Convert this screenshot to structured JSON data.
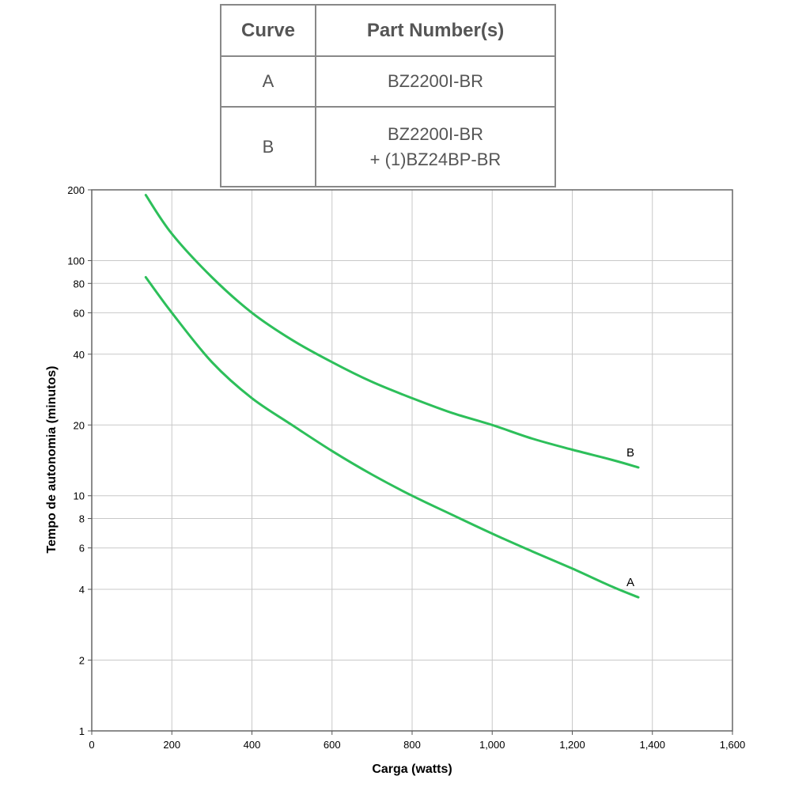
{
  "legend_table": {
    "headers": [
      "Curve",
      "Part Number(s)"
    ],
    "rows": [
      {
        "curve": "A",
        "parts": [
          "BZ2200I-BR"
        ]
      },
      {
        "curve": "B",
        "parts": [
          "BZ2200I-BR",
          "+ (1)BZ24BP-BR"
        ]
      }
    ]
  },
  "chart_data": {
    "type": "line",
    "xlabel": "Carga (watts)",
    "ylabel": "Tempo de autonomia (minutos)",
    "xlim": [
      0,
      1600
    ],
    "ylim": [
      1,
      200
    ],
    "yscale": "log",
    "grid": true,
    "x_ticks": [
      "0",
      "200",
      "400",
      "600",
      "800",
      "1,000",
      "1,200",
      "1,400",
      "1,600"
    ],
    "y_ticks": [
      "1",
      "2",
      "4",
      "6",
      "8",
      "10",
      "20",
      "40",
      "60",
      "80",
      "100",
      "200"
    ],
    "line_color": "#2dbf5a",
    "series": [
      {
        "name": "A",
        "x": [
          135,
          200,
          300,
          400,
          500,
          600,
          700,
          800,
          900,
          1000,
          1100,
          1200,
          1300,
          1365
        ],
        "y": [
          85,
          60,
          37,
          26,
          20,
          15.5,
          12.3,
          10,
          8.3,
          6.9,
          5.8,
          4.9,
          4.1,
          3.7
        ]
      },
      {
        "name": "B",
        "x": [
          135,
          200,
          300,
          400,
          500,
          600,
          700,
          800,
          900,
          1000,
          1100,
          1200,
          1300,
          1365
        ],
        "y": [
          190,
          130,
          85,
          60,
          46,
          37,
          30.5,
          26,
          22.5,
          20,
          17.5,
          15.7,
          14.2,
          13.2
        ]
      }
    ]
  }
}
